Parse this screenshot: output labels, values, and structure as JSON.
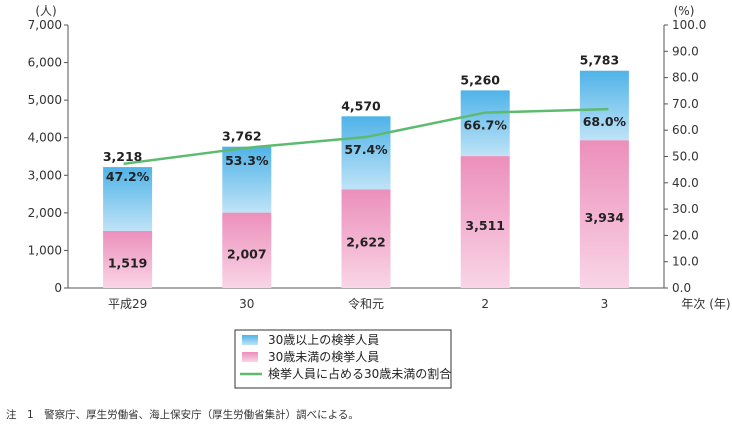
{
  "chart_data": {
    "type": "bar",
    "stacked": true,
    "categories": [
      "平成29",
      "30",
      "令和元",
      "2",
      "3"
    ],
    "series": [
      {
        "name": "30歳未満の検挙人員",
        "type": "bar",
        "axis": "left",
        "values": [
          1519,
          2007,
          2622,
          3511,
          3934
        ],
        "color": "#ee9cc2"
      },
      {
        "name": "30歳以上の検挙人員",
        "type": "bar",
        "axis": "left",
        "values": [
          1699,
          1755,
          1948,
          1749,
          1849
        ],
        "color": "#6cc0ea"
      },
      {
        "name": "検挙人員に占める30歳未満の割合",
        "type": "line",
        "axis": "right",
        "values": [
          47.2,
          53.3,
          57.4,
          66.7,
          68.0
        ],
        "color": "#5dbb6f"
      }
    ],
    "bottom_labels": [
      "1,519",
      "2,007",
      "2,622",
      "3,511",
      "3,934"
    ],
    "total_labels": [
      "3,218",
      "3,762",
      "4,570",
      "5,260",
      "5,783"
    ],
    "pct_labels": [
      "47.2%",
      "53.3%",
      "57.4%",
      "66.7%",
      "68.0%"
    ],
    "left_axis": {
      "unit": "(人)",
      "ylim": [
        0,
        7000
      ],
      "ticks": [
        0,
        1000,
        2000,
        3000,
        4000,
        5000,
        6000,
        7000
      ],
      "tick_labels": [
        "0",
        "1,000",
        "2,000",
        "3,000",
        "4,000",
        "5,000",
        "6,000",
        "7,000"
      ]
    },
    "right_axis": {
      "unit": "(%)",
      "ylim": [
        0,
        100
      ],
      "ticks": [
        0,
        10,
        20,
        30,
        40,
        50,
        60,
        70,
        80,
        90,
        100
      ],
      "tick_labels": [
        "0.0",
        "10.0",
        "20.0",
        "30.0",
        "40.0",
        "50.0",
        "60.0",
        "70.0",
        "80.0",
        "90.0",
        "100.0"
      ]
    },
    "xlabel": "年次 (年)",
    "legend": [
      {
        "label": "30歳以上の検挙人員",
        "kind": "bar",
        "color": "#6cc0ea"
      },
      {
        "label": "30歳未満の検挙人員",
        "kind": "bar",
        "color": "#ee9cc2"
      },
      {
        "label": "検挙人員に占める30歳未満の割合",
        "kind": "line",
        "color": "#5dbb6f"
      }
    ],
    "legend_position": "bottom-center",
    "grid": false
  },
  "note": "注　1　警察庁、厚生労働省、海上保安庁（厚生労働省集計）調べによる。"
}
